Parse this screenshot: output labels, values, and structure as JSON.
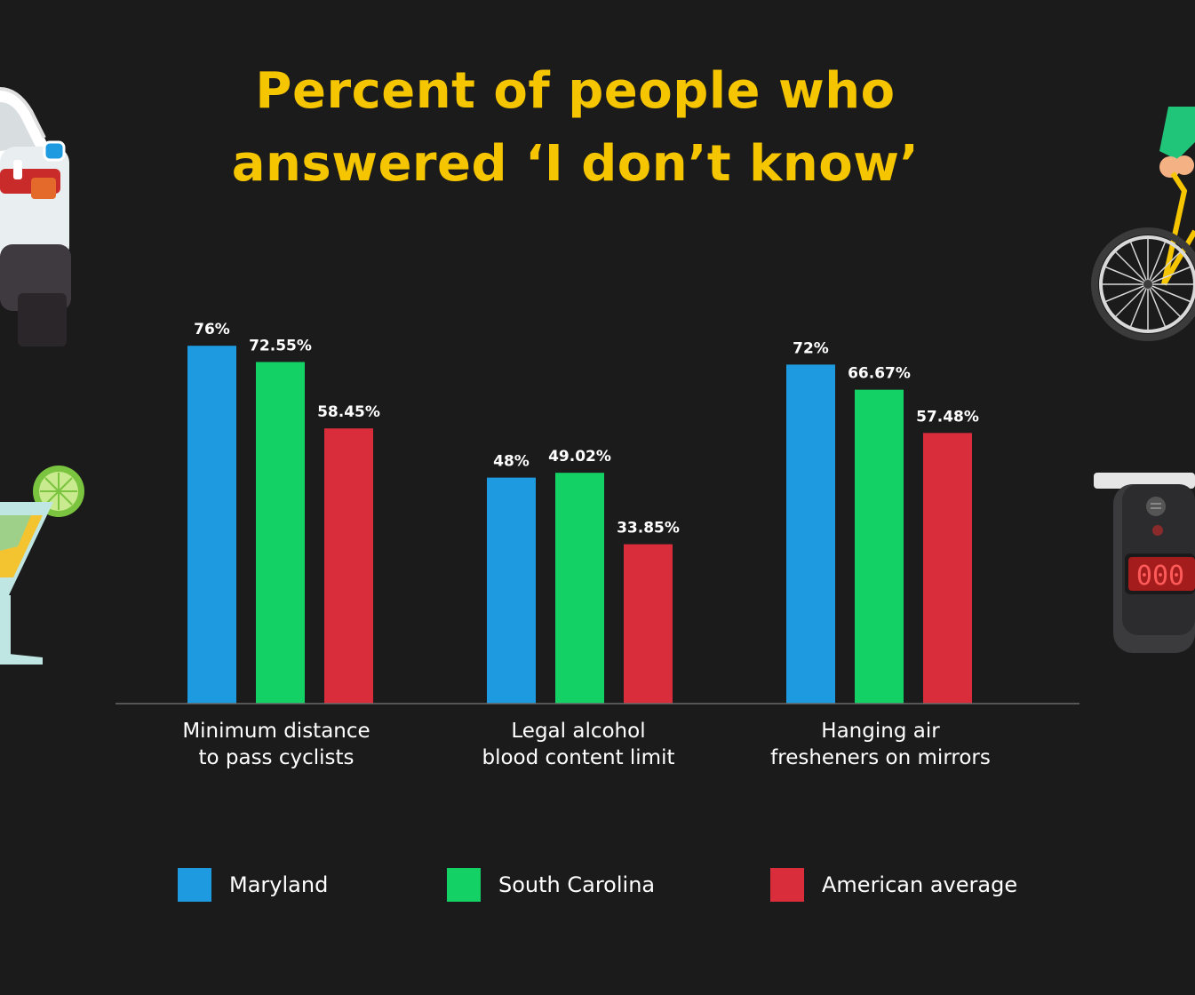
{
  "chart_data": {
    "type": "bar",
    "title_lines": [
      "Percent of people who",
      "answered ‘I don’t know’"
    ],
    "categories": [
      [
        "Minimum distance",
        "to pass cyclists"
      ],
      [
        "Legal alcohol",
        "blood content limit"
      ],
      [
        "Hanging air",
        "fresheners on mirrors"
      ]
    ],
    "series": [
      {
        "name": "Maryland",
        "color": "#1e9be0",
        "values": [
          76,
          48,
          72
        ],
        "labels": [
          "76%",
          "48%",
          "72%"
        ]
      },
      {
        "name": "South Carolina",
        "color": "#13d164",
        "values": [
          72.55,
          49.02,
          66.67
        ],
        "labels": [
          "72.55%",
          "49.02%",
          "66.67%"
        ]
      },
      {
        "name": "American average",
        "color": "#d92d3c",
        "values": [
          58.45,
          33.85,
          57.48
        ],
        "labels": [
          "58.45%",
          "33.85%",
          "57.48%"
        ]
      }
    ],
    "grid": false,
    "legend": "bottom",
    "value_labels": "above-bars"
  },
  "colors": {
    "background": "#1b1b1b",
    "title": "#f5c500",
    "text": "#ffffff",
    "axis": "#6a6a6a"
  },
  "decorations": [
    "car-illustration",
    "cocktail-illustration",
    "bicycle-illustration",
    "breathalyzer-illustration"
  ],
  "decoration_text": {
    "breathalyzer_display": "000"
  }
}
